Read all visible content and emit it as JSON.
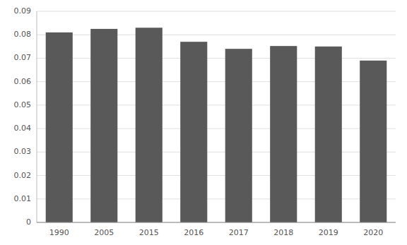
{
  "chart_data": {
    "type": "bar",
    "categories": [
      "1990",
      "2005",
      "2015",
      "2016",
      "2017",
      "2018",
      "2019",
      "2020"
    ],
    "values": [
      0.081,
      0.0825,
      0.083,
      0.077,
      0.074,
      0.0752,
      0.075,
      0.069
    ],
    "color": "#595959",
    "ylim": [
      0,
      0.09
    ],
    "yticks": [
      0,
      0.01,
      0.02,
      0.03,
      0.04,
      0.05,
      0.06,
      0.07,
      0.08,
      0.09
    ],
    "grid": true
  }
}
